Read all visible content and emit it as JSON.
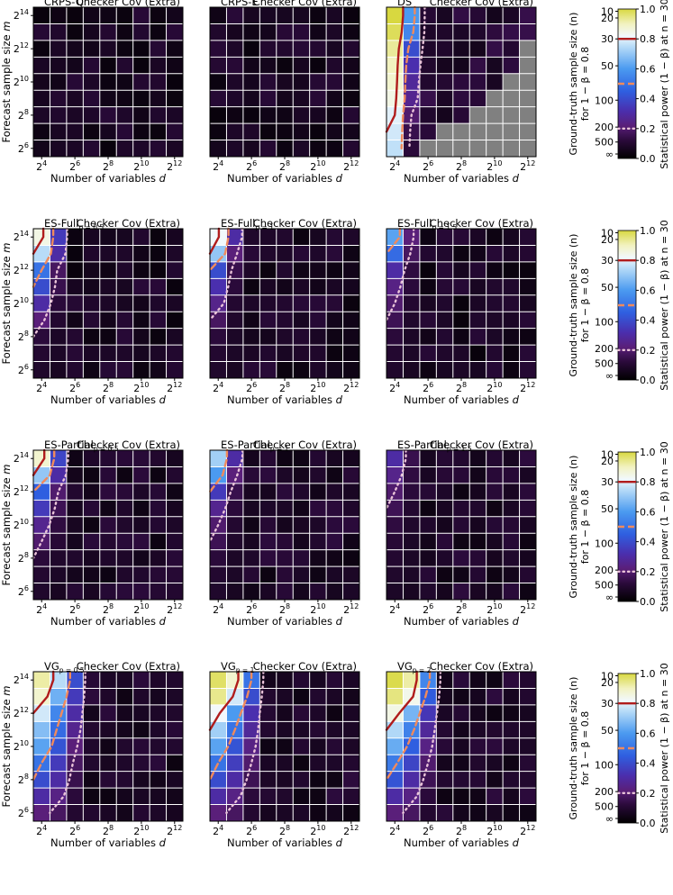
{
  "common": {
    "xlabel": "Number of variables d",
    "ylabel": "Forecast sample size m",
    "x_tick_exponents": [
      4,
      6,
      8,
      10,
      12
    ],
    "y_tick_exponents": [
      6,
      8,
      10,
      12,
      14
    ],
    "subtitle_suffix": "Checker Cov (Extra)"
  },
  "colorbar": {
    "label_power": "Statistical power (1 − β) at n = 30",
    "label_n_line1": "Ground-truth sample size (n)",
    "label_n_line2": "for 1 − β = 0.8",
    "power_ticks": [
      "0.0",
      "0.2",
      "0.4",
      "0.6",
      "0.8",
      "1.0"
    ],
    "power_tick_values": [
      0.0,
      0.2,
      0.4,
      0.6,
      0.8,
      1.0
    ],
    "n_ticks": [
      "10",
      "20",
      "30",
      "50",
      "100",
      "200",
      "500",
      "∞"
    ],
    "n_tick_values": [
      0.985,
      0.94,
      0.8,
      0.62,
      0.39,
      0.21,
      0.11,
      0.03
    ],
    "line_red_value": 0.8,
    "line_orange_value": 0.5,
    "line_dotted_value": 0.2
  },
  "chart_data": [
    {
      "type": "heatmap",
      "row": 0,
      "col": 0,
      "title": "CRPS-Q",
      "title_sub": "",
      "base": 0.07,
      "hot": [],
      "nan": false
    },
    {
      "type": "heatmap",
      "row": 0,
      "col": 1,
      "title": "CRPS-E",
      "title_sub": "",
      "base": 0.07,
      "hot": [],
      "nan": false
    },
    {
      "type": "heatmap",
      "row": 0,
      "col": 2,
      "title": "DS",
      "title_sub": "",
      "base": 0.1,
      "hot": [
        1.0,
        0.98,
        0.93,
        0.9,
        0.88,
        0.85,
        0.8,
        0.78,
        0.76
      ],
      "hot2": [
        0.6,
        0.55,
        0.4,
        0.32,
        0.28,
        0.26,
        0.2,
        0.15,
        0.12
      ],
      "nan": true
    },
    {
      "type": "heatmap",
      "row": 1,
      "col": 0,
      "title": "ES-Full",
      "title_sub": "p = 0.5",
      "base": 0.07,
      "hot": [
        0.85,
        0.75,
        0.5,
        0.4,
        0.3,
        0.22,
        0.12,
        0.1,
        0.09
      ],
      "hot2": [
        0.35,
        0.3,
        0.18,
        0.15,
        0.12,
        0.1,
        0.08,
        0.08,
        0.07
      ],
      "nan": false
    },
    {
      "type": "heatmap",
      "row": 1,
      "col": 1,
      "title": "ES-Full",
      "title_sub": "p = 1",
      "base": 0.07,
      "hot": [
        0.82,
        0.7,
        0.4,
        0.32,
        0.25,
        0.18,
        0.12,
        0.1,
        0.09
      ],
      "hot2": [
        0.3,
        0.22,
        0.15,
        0.12,
        0.1,
        0.09,
        0.08,
        0.08,
        0.07
      ],
      "nan": false
    },
    {
      "type": "heatmap",
      "row": 1,
      "col": 2,
      "title": "ES-Full",
      "title_sub": "p = 1.5",
      "base": 0.07,
      "hot": [
        0.62,
        0.48,
        0.3,
        0.24,
        0.2,
        0.16,
        0.12,
        0.1,
        0.09
      ],
      "hot2": [
        0.22,
        0.18,
        0.13,
        0.12,
        0.1,
        0.09,
        0.08,
        0.08,
        0.07
      ],
      "nan": false
    },
    {
      "type": "heatmap",
      "row": 2,
      "col": 0,
      "title": "ES-Partial",
      "title_sub": "p = 0.5",
      "base": 0.08,
      "hot": [
        0.88,
        0.7,
        0.45,
        0.35,
        0.26,
        0.2,
        0.12,
        0.1,
        0.09
      ],
      "hot2": [
        0.38,
        0.3,
        0.2,
        0.16,
        0.13,
        0.11,
        0.09,
        0.08,
        0.07
      ],
      "nan": false
    },
    {
      "type": "heatmap",
      "row": 2,
      "col": 1,
      "title": "ES-Partial",
      "title_sub": "p = 1",
      "base": 0.08,
      "hot": [
        0.72,
        0.6,
        0.35,
        0.26,
        0.2,
        0.16,
        0.12,
        0.1,
        0.09
      ],
      "hot2": [
        0.3,
        0.22,
        0.15,
        0.12,
        0.1,
        0.09,
        0.08,
        0.08,
        0.07
      ],
      "nan": false
    },
    {
      "type": "heatmap",
      "row": 2,
      "col": 2,
      "title": "ES-Partial",
      "title_sub": "p = 1.5",
      "base": 0.08,
      "hot": [
        0.3,
        0.25,
        0.2,
        0.16,
        0.13,
        0.11,
        0.1,
        0.09,
        0.08
      ],
      "hot2": [
        0.15,
        0.13,
        0.12,
        0.1,
        0.09,
        0.08,
        0.08,
        0.08,
        0.07
      ],
      "nan": false
    },
    {
      "type": "heatmap",
      "row": 3,
      "col": 0,
      "title": "VG",
      "title_sub": "p = 0.5",
      "base": 0.08,
      "hot": [
        0.92,
        0.88,
        0.78,
        0.68,
        0.62,
        0.5,
        0.4,
        0.3,
        0.22
      ],
      "hot2": [
        0.75,
        0.65,
        0.55,
        0.48,
        0.42,
        0.35,
        0.3,
        0.24,
        0.18
      ],
      "hot3": [
        0.4,
        0.35,
        0.3,
        0.26,
        0.22,
        0.18,
        0.15,
        0.12,
        0.1
      ],
      "nan": false
    },
    {
      "type": "heatmap",
      "row": 3,
      "col": 1,
      "title": "VG",
      "title_sub": "p = 1",
      "base": 0.08,
      "hot": [
        0.97,
        0.94,
        0.82,
        0.72,
        0.62,
        0.5,
        0.4,
        0.3,
        0.22
      ],
      "hot2": [
        0.88,
        0.78,
        0.6,
        0.5,
        0.42,
        0.36,
        0.3,
        0.24,
        0.18
      ],
      "hot3": [
        0.5,
        0.4,
        0.32,
        0.28,
        0.24,
        0.2,
        0.16,
        0.12,
        0.1
      ],
      "nan": false
    },
    {
      "type": "heatmap",
      "row": 3,
      "col": 2,
      "title": "VG",
      "title_sub": "p = 2",
      "base": 0.08,
      "hot": [
        0.99,
        0.95,
        0.85,
        0.74,
        0.64,
        0.52,
        0.42,
        0.3,
        0.22
      ],
      "hot2": [
        0.92,
        0.84,
        0.66,
        0.54,
        0.45,
        0.38,
        0.3,
        0.24,
        0.18
      ],
      "hot3": [
        0.55,
        0.44,
        0.34,
        0.28,
        0.24,
        0.2,
        0.16,
        0.12,
        0.1
      ],
      "nan": false
    }
  ]
}
